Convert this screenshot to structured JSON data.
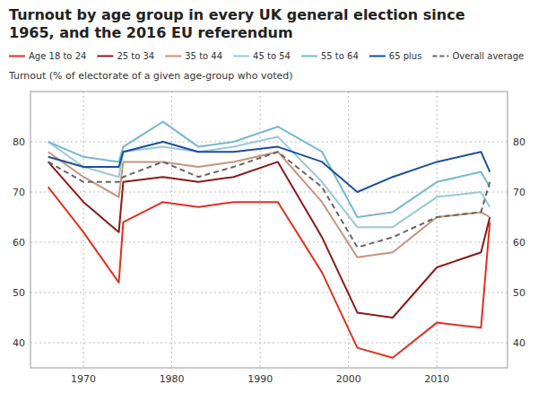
{
  "chart_data": {
    "type": "line",
    "title": "Turnout by age group in every UK general election since\n1965, and the 2016 EU referendum",
    "y_label": "Turnout (% of electorate of a given age-group who voted)",
    "x": [
      1966,
      1970,
      1974,
      1974.5,
      1979,
      1983,
      1987,
      1992,
      1997,
      2001,
      2005,
      2010,
      2015,
      2016
    ],
    "series": [
      {
        "name": "Age 18 to 24",
        "color": "#e03020",
        "line_style": "solid",
        "values": [
          71,
          62,
          52,
          64,
          68,
          67,
          68,
          68,
          54,
          39,
          37,
          44,
          43,
          64
        ]
      },
      {
        "name": "25 to 34",
        "color": "#8b1a1a",
        "line_style": "solid",
        "values": [
          76,
          68,
          62,
          72,
          73,
          72,
          73,
          76,
          61,
          46,
          45,
          55,
          58,
          65
        ]
      },
      {
        "name": "35 to 44",
        "color": "#c8937a",
        "line_style": "solid",
        "values": [
          78,
          73,
          69,
          76,
          76,
          75,
          76,
          78,
          68,
          57,
          58,
          65,
          66,
          65
        ]
      },
      {
        "name": "45 to 54",
        "color": "#9ac8d8",
        "line_style": "solid",
        "values": [
          80,
          75,
          73,
          78,
          79,
          78,
          79,
          81,
          72,
          63,
          63,
          69,
          70,
          67
        ]
      },
      {
        "name": "55 to 64",
        "color": "#78b8d0",
        "line_style": "solid",
        "values": [
          80,
          77,
          76,
          79,
          84,
          79,
          80,
          83,
          78,
          65,
          66,
          72,
          74,
          71
        ]
      },
      {
        "name": "65 plus",
        "color": "#1a4f9c",
        "line_style": "solid",
        "values": [
          77,
          75,
          75,
          78,
          80,
          78,
          78,
          79,
          76,
          70,
          73,
          76,
          78,
          74
        ]
      },
      {
        "name": "Overall average",
        "color": "#666666",
        "line_style": "dashed",
        "values": [
          76,
          72,
          72,
          73,
          76,
          73,
          75,
          78,
          71,
          59,
          61,
          65,
          66,
          72
        ]
      }
    ],
    "xlim": [
      1964,
      2018
    ],
    "xticks": [
      1970,
      1980,
      1990,
      2000,
      2010
    ],
    "ylim": [
      35,
      90
    ],
    "yticks": [
      40,
      50,
      60,
      70,
      80
    ],
    "y2lim": [
      35,
      90
    ],
    "y2ticks": [
      40,
      50,
      60,
      70,
      80
    ],
    "grid": true
  }
}
